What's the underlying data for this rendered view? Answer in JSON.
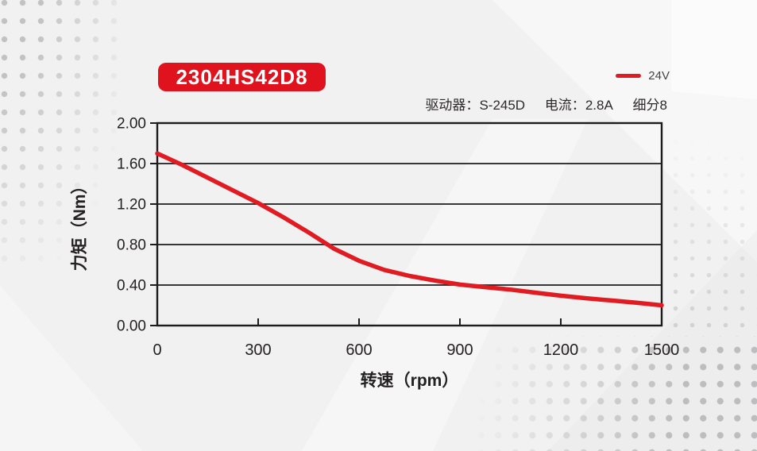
{
  "page": {
    "background": "#f2f1f1"
  },
  "badge": {
    "label": "2304HS42D8",
    "color": "#e0121e",
    "text_color": "#ffffff"
  },
  "legend": {
    "label": "24V",
    "swatch_color": "#e01b22"
  },
  "info": {
    "driver_label": "驱动器：",
    "driver_value": "S-245D",
    "current_label": "电流：",
    "current_value": "2.8A",
    "microstep": "细分8"
  },
  "chart_data": {
    "type": "line",
    "title": "",
    "xlabel": "转速（rpm）",
    "ylabel": "力矩（Nm）",
    "xlim": [
      0,
      1500
    ],
    "ylim": [
      0,
      2.0
    ],
    "xticks": [
      0,
      300,
      600,
      900,
      1200,
      1500
    ],
    "xtick_labels": [
      "0",
      "300",
      "600",
      "900",
      "1200",
      "1500"
    ],
    "yticks": [
      0,
      0.4,
      0.8,
      1.2,
      1.6,
      2.0
    ],
    "ytick_labels": [
      "0.00",
      "0.40",
      "0.80",
      "1.20",
      "1.60",
      "2.00"
    ],
    "grid": "horizontal",
    "legend_position": "top-right",
    "axis_color": "#1c1c1c",
    "series": [
      {
        "name": "24V",
        "color": "#e01b22",
        "x": [
          0,
          75,
          150,
          225,
          300,
          375,
          450,
          525,
          600,
          675,
          750,
          825,
          900,
          975,
          1050,
          1125,
          1200,
          1275,
          1350,
          1425,
          1500
        ],
        "y": [
          1.7,
          1.585,
          1.46,
          1.335,
          1.21,
          1.07,
          0.92,
          0.76,
          0.64,
          0.55,
          0.49,
          0.445,
          0.405,
          0.38,
          0.355,
          0.325,
          0.295,
          0.27,
          0.248,
          0.225,
          0.2
        ]
      }
    ]
  }
}
